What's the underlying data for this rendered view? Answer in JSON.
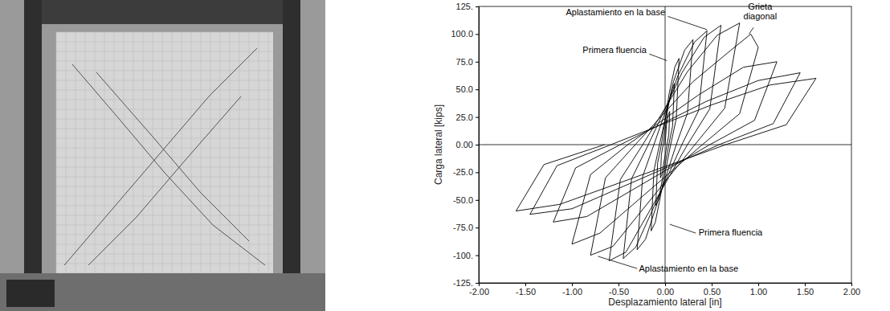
{
  "chart_data": {
    "type": "line",
    "x_label": "Desplazamiento lateral [in]",
    "y_label": "Carga lateral [kips]",
    "color": "#000000",
    "annotations": [
      "Aplastamiento en la base",
      "Grieta diagonal",
      "Primera fluencia",
      "Primera fluencia",
      "Aplastamiento en la base"
    ],
    "xlim": [
      -2,
      2
    ],
    "ylim": [
      -125,
      125
    ],
    "xticks": [
      {
        "value": -2,
        "label": "-2.00"
      },
      {
        "value": -1.5,
        "label": "-1.50"
      },
      {
        "value": -1,
        "label": "-1.00"
      },
      {
        "value": -0.5,
        "label": "-0.50"
      },
      {
        "value": 0,
        "label": "0.00"
      },
      {
        "value": 0.5,
        "label": "0.50"
      },
      {
        "value": 1,
        "label": "1.00"
      },
      {
        "value": 1.5,
        "label": "1.50"
      },
      {
        "value": 2,
        "label": "2.00"
      }
    ],
    "yticks": [
      {
        "value": -125,
        "label": "-125."
      },
      {
        "value": -100,
        "label": "-100."
      },
      {
        "value": -75,
        "label": "-75.0"
      },
      {
        "value": -50,
        "label": "-50.0"
      },
      {
        "value": -25,
        "label": "-25.0"
      },
      {
        "value": 0,
        "label": "0.00"
      },
      {
        "value": 25,
        "label": "25.0"
      },
      {
        "value": 50,
        "label": "50.0"
      },
      {
        "value": 75,
        "label": "75.0"
      },
      {
        "value": 100,
        "label": "100.0"
      },
      {
        "value": 125,
        "label": "125."
      }
    ],
    "grid": false,
    "x": [
      0,
      0.015,
      0.035,
      0.05,
      0.04,
      0.02,
      -0.035,
      -0.05,
      -0.04,
      -0.02,
      0.03,
      0.07,
      0.1,
      0.08,
      0.04,
      -0.07,
      -0.1,
      -0.08,
      -0.04,
      0.045,
      0.105,
      0.15,
      0.12,
      0.06,
      -0.105,
      -0.15,
      -0.12,
      -0.06,
      0.09,
      0.21,
      0.3,
      0.24,
      0.12,
      -0.21,
      -0.3,
      -0.24,
      -0.12,
      0.135,
      0.315,
      0.45,
      0.36,
      0.18,
      -0.315,
      -0.45,
      -0.36,
      -0.18,
      0.18,
      0.42,
      0.6,
      0.48,
      0.24,
      -0.42,
      -0.6,
      -0.48,
      -0.24,
      0.24,
      0.56,
      0.8,
      0.64,
      0.32,
      -0.56,
      -0.8,
      -0.64,
      -0.32,
      0.3,
      0.7,
      0.92,
      1.0,
      0.8,
      0.4,
      -0.7,
      -1.0,
      -0.8,
      -0.4,
      0.36,
      0.84,
      1.2,
      0.96,
      0.48,
      -0.84,
      -1.2,
      -0.96,
      -0.48,
      0.44,
      1.0,
      1.45,
      1.16,
      0.58,
      -1.0,
      -1.45,
      -1.16,
      -0.58,
      0.5,
      1.13,
      1.62,
      1.3,
      0.65,
      -1.13,
      -1.6,
      -1.3,
      -0.65
    ],
    "values": [
      0,
      18,
      27,
      30,
      9,
      0,
      -27,
      -30,
      -9,
      0,
      33,
      49.5,
      55,
      16.5,
      0,
      -49.5,
      -55,
      -16.5,
      0,
      46.8,
      70.2,
      78,
      23.4,
      0,
      -70.2,
      -78,
      -23.4,
      0,
      57,
      85.5,
      95,
      28.5,
      0,
      -85.5,
      -95,
      -28.5,
      0,
      61.8,
      92.7,
      103,
      30.9,
      0,
      -92.7,
      -103,
      -30.9,
      0,
      64.8,
      97.2,
      108,
      32.4,
      0,
      -97.2,
      -105,
      -31.5,
      0,
      66,
      99,
      110,
      33,
      0,
      -92,
      -100,
      -30,
      0,
      57,
      85,
      100,
      88,
      28,
      0,
      -80,
      -90,
      -27,
      0,
      45,
      70,
      75,
      22,
      0,
      -65,
      -70,
      -21,
      0,
      39,
      58,
      65,
      19,
      0,
      -58,
      -63,
      -19,
      0,
      36,
      54,
      60,
      18,
      0,
      -54,
      -60,
      -18,
      0
    ]
  }
}
